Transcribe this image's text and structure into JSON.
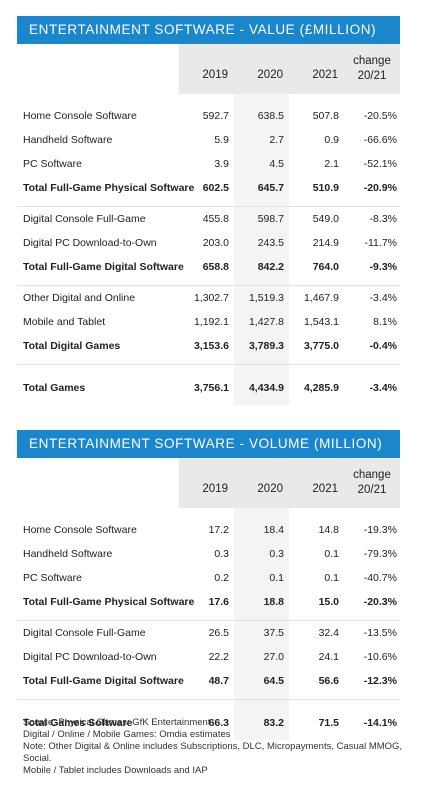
{
  "value_table": {
    "title": "ENTERTAINMENT SOFTWARE - VALUE (£MILLION)",
    "headers": {
      "y1": "2019",
      "y2": "2020",
      "y3": "2021",
      "change_line1": "change",
      "change_line2": "20/21"
    },
    "rows": [
      {
        "label": "Home Console Software",
        "y1": "592.7",
        "y2": "638.5",
        "y3": "507.8",
        "change": "-20.5%",
        "total": false
      },
      {
        "label": "Handheld Software",
        "y1": "5.9",
        "y2": "2.7",
        "y3": "0.9",
        "change": "-66.6%",
        "total": false
      },
      {
        "label": "PC Software",
        "y1": "3.9",
        "y2": "4.5",
        "y3": "2.1",
        "change": "-52.1%",
        "total": false
      },
      {
        "label": "Total Full-Game Physical Software",
        "y1": "602.5",
        "y2": "645.7",
        "y3": "510.9",
        "change": "-20.9%",
        "total": true
      },
      {
        "label": "Digital Console Full-Game",
        "y1": "455.8",
        "y2": "598.7",
        "y3": "549.0",
        "change": "-8.3%",
        "total": false
      },
      {
        "label": "Digital PC Download-to-Own",
        "y1": "203.0",
        "y2": "243.5",
        "y3": "214.9",
        "change": "-11.7%",
        "total": false
      },
      {
        "label": "Total Full-Game Digital Software",
        "y1": "658.8",
        "y2": "842.2",
        "y3": "764.0",
        "change": "-9.3%",
        "total": true
      },
      {
        "label": "Other Digital and Online",
        "y1": "1,302.7",
        "y2": "1,519.3",
        "y3": "1,467.9",
        "change": "-3.4%",
        "total": false
      },
      {
        "label": "Mobile and Tablet",
        "y1": "1,192.1",
        "y2": "1,427.8",
        "y3": "1,543.1",
        "change": "8.1%",
        "total": false
      },
      {
        "label": "Total Digital Games",
        "y1": "3,153.6",
        "y2": "3,789.3",
        "y3": "3,775.0",
        "change": "-0.4%",
        "total": true
      },
      {
        "label": "Total Games",
        "y1": "3,756.1",
        "y2": "4,434.9",
        "y3": "4,285.9",
        "change": "-3.4%",
        "total": true
      }
    ]
  },
  "volume_table": {
    "title": "ENTERTAINMENT SOFTWARE - VOLUME (MILLION)",
    "headers": {
      "y1": "2019",
      "y2": "2020",
      "y3": "2021",
      "change_line1": "change",
      "change_line2": "20/21"
    },
    "rows": [
      {
        "label": "Home Console Software",
        "y1": "17.2",
        "y2": "18.4",
        "y3": "14.8",
        "change": "-19.3%",
        "total": false
      },
      {
        "label": "Handheld Software",
        "y1": "0.3",
        "y2": "0.3",
        "y3": "0.1",
        "change": "-79.3%",
        "total": false
      },
      {
        "label": "PC Software",
        "y1": "0.2",
        "y2": "0.1",
        "y3": "0.1",
        "change": "-40.7%",
        "total": false
      },
      {
        "label": "Total Full-Game Physical Software",
        "y1": "17.6",
        "y2": "18.8",
        "y3": "15.0",
        "change": "-20.3%",
        "total": true
      },
      {
        "label": "Digital Console Full-Game",
        "y1": "26.5",
        "y2": "37.5",
        "y3": "32.4",
        "change": "-13.5%",
        "total": false
      },
      {
        "label": "Digital PC Download-to-Own",
        "y1": "22.2",
        "y2": "27.0",
        "y3": "24.1",
        "change": "-10.6%",
        "total": false
      },
      {
        "label": "Total Full-Game Digital Software",
        "y1": "48.7",
        "y2": "64.5",
        "y3": "56.6",
        "change": "-12.3%",
        "total": true
      },
      {
        "label": "Total Games Software",
        "y1": "66.3",
        "y2": "83.2",
        "y3": "71.5",
        "change": "-14.1%",
        "total": true
      }
    ]
  },
  "footnote": {
    "line1": "Source: Physical Games: GfK Entertainment",
    "line2": "Digital / Online / Mobile Games: Omdia estimates",
    "line3": "Note: Other Digital & Online includes Subscriptions, DLC, Micropayments, Casual MMOG, Social.",
    "line4": "Mobile / Tablet includes Downloads and IAP"
  },
  "colors": {
    "banner": "#1a86cc",
    "header_bg": "#e9e9e9",
    "stripe": "#f4f4f4"
  }
}
